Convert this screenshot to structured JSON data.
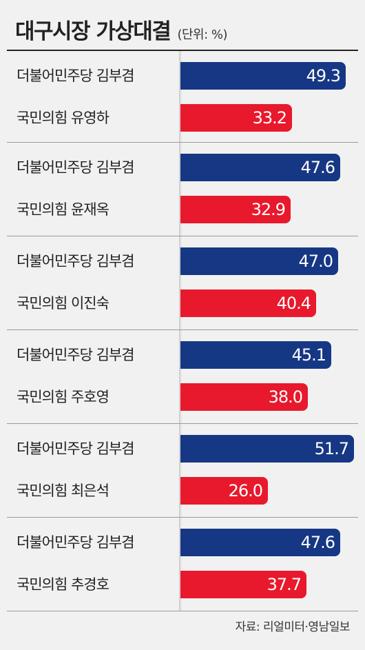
{
  "header": {
    "title": "대구시장 가상대결",
    "unit": "(단위: %)"
  },
  "colors": {
    "blue": "#163784",
    "red": "#e8192c"
  },
  "chart_data": {
    "type": "bar",
    "orientation": "horizontal",
    "title": "대구시장 가상대결",
    "unit": "(단위: %)",
    "xlim": [
      0,
      52
    ],
    "groups": [
      {
        "rows": [
          {
            "label": "더불어민주당 김부겸",
            "value": 49.3,
            "display": "49.3",
            "color": "blue"
          },
          {
            "label": "국민의힘 유영하",
            "value": 33.2,
            "display": "33.2",
            "color": "red"
          }
        ]
      },
      {
        "rows": [
          {
            "label": "더불어민주당 김부겸",
            "value": 47.6,
            "display": "47.6",
            "color": "blue"
          },
          {
            "label": "국민의힘 윤재옥",
            "value": 32.9,
            "display": "32.9",
            "color": "red"
          }
        ]
      },
      {
        "rows": [
          {
            "label": "더불어민주당 김부겸",
            "value": 47.0,
            "display": "47.0",
            "color": "blue"
          },
          {
            "label": "국민의힘 이진숙",
            "value": 40.4,
            "display": "40.4",
            "color": "red"
          }
        ]
      },
      {
        "rows": [
          {
            "label": "더불어민주당 김부겸",
            "value": 45.1,
            "display": "45.1",
            "color": "blue"
          },
          {
            "label": "국민의힘 주호영",
            "value": 38.0,
            "display": "38.0",
            "color": "red"
          }
        ]
      },
      {
        "rows": [
          {
            "label": "더불어민주당 김부겸",
            "value": 51.7,
            "display": "51.7",
            "color": "blue"
          },
          {
            "label": "국민의힘 최은석",
            "value": 26.0,
            "display": "26.0",
            "color": "red"
          }
        ]
      },
      {
        "rows": [
          {
            "label": "더불어민주당 김부겸",
            "value": 47.6,
            "display": "47.6",
            "color": "blue"
          },
          {
            "label": "국민의힘 추경호",
            "value": 37.7,
            "display": "37.7",
            "color": "red"
          }
        ]
      }
    ]
  },
  "footer": {
    "source": "자료: 리얼미터·영남일보"
  }
}
